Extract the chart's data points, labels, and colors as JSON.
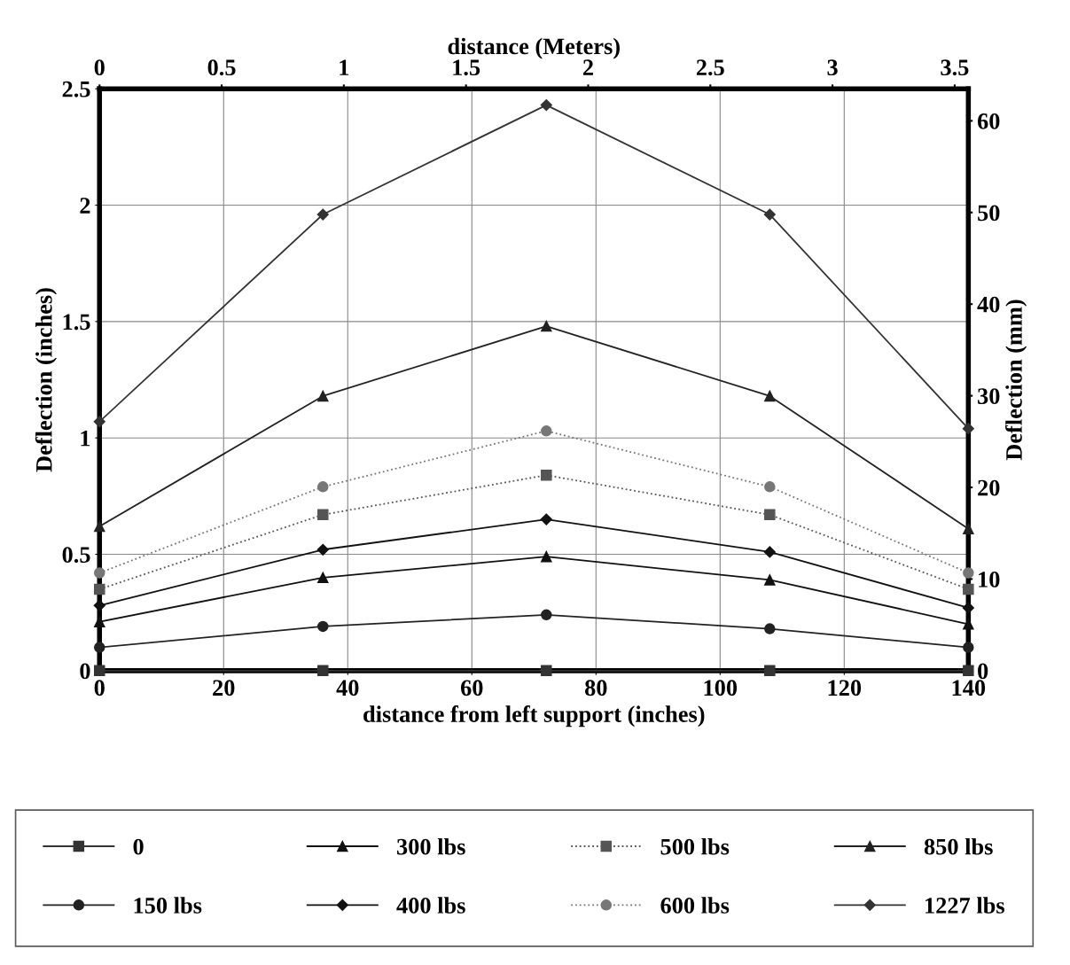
{
  "chart_data": {
    "type": "line",
    "xlabel": "distance from left support (inches)",
    "x2label": "distance (Meters)",
    "ylabel": "Deflection (inches)",
    "y2label": "Deflection (mm)",
    "x": [
      0,
      36,
      72,
      108,
      140
    ],
    "xlim": [
      0,
      140
    ],
    "xticks": [
      0,
      20,
      40,
      60,
      80,
      100,
      120,
      140
    ],
    "x2lim": [
      0,
      3.556
    ],
    "x2ticks": [
      0,
      0.5,
      1,
      1.5,
      2,
      2.5,
      3,
      3.5
    ],
    "ylim": [
      0,
      2.5
    ],
    "yticks": [
      0,
      0.5,
      1,
      1.5,
      2,
      2.5
    ],
    "y2lim": [
      0,
      63.5
    ],
    "y2ticks": [
      0,
      10,
      20,
      30,
      40,
      50,
      60
    ],
    "grid": true,
    "legend": "bottom",
    "series": [
      {
        "name": "0",
        "color": "#333333",
        "marker": "square",
        "line_style": "solid",
        "values": [
          0,
          0,
          0,
          0,
          0
        ]
      },
      {
        "name": "150 lbs",
        "color": "#222222",
        "marker": "circle",
        "line_style": "solid",
        "values": [
          0.1,
          0.19,
          0.24,
          0.18,
          0.1
        ]
      },
      {
        "name": "300 lbs",
        "color": "#111111",
        "marker": "triangle",
        "line_style": "solid",
        "values": [
          0.21,
          0.4,
          0.49,
          0.39,
          0.2
        ]
      },
      {
        "name": "400 lbs",
        "color": "#111111",
        "marker": "diamond",
        "line_style": "solid",
        "values": [
          0.28,
          0.52,
          0.65,
          0.51,
          0.27
        ]
      },
      {
        "name": "500 lbs",
        "color": "#555555",
        "marker": "square",
        "line_style": "dotted",
        "values": [
          0.35,
          0.67,
          0.84,
          0.67,
          0.35
        ]
      },
      {
        "name": "600 lbs",
        "color": "#777777",
        "marker": "circle",
        "line_style": "dotted",
        "values": [
          0.42,
          0.79,
          1.03,
          0.79,
          0.42
        ]
      },
      {
        "name": "850 lbs",
        "color": "#222222",
        "marker": "triangle",
        "line_style": "solid",
        "values": [
          0.62,
          1.18,
          1.48,
          1.18,
          0.61
        ]
      },
      {
        "name": "1227 lbs",
        "color": "#333333",
        "marker": "diamond",
        "line_style": "solid",
        "values": [
          1.07,
          1.96,
          2.43,
          1.96,
          1.04
        ]
      }
    ]
  }
}
